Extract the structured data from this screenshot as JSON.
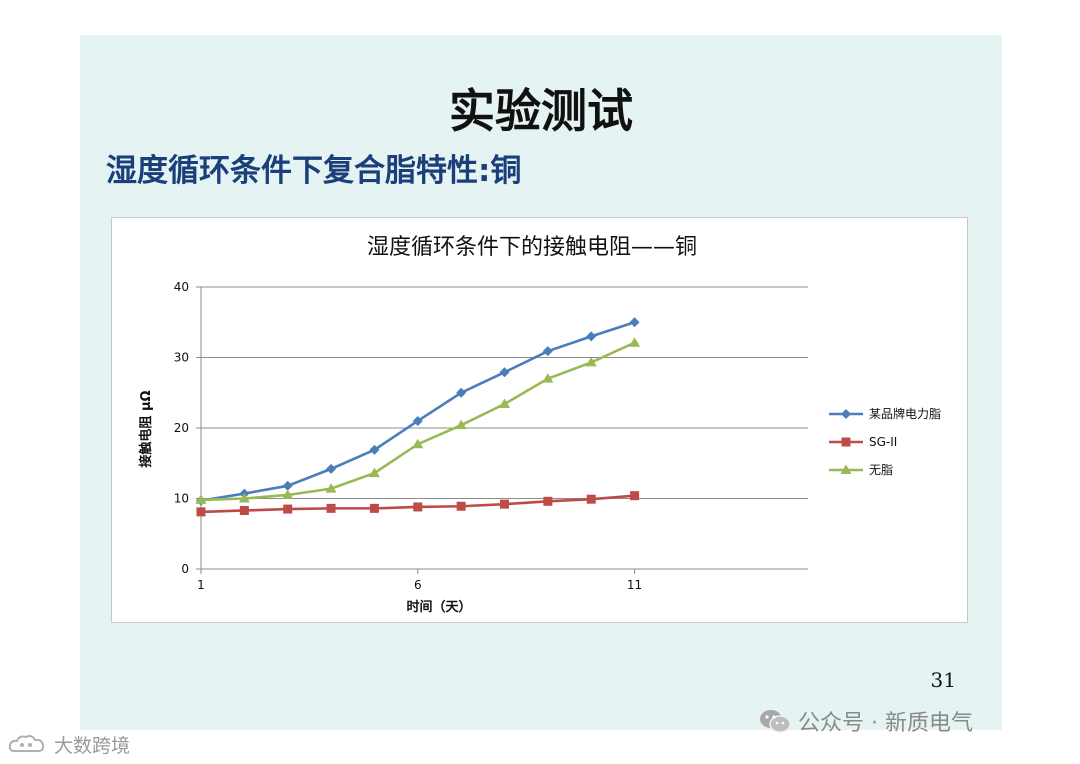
{
  "slide": {
    "title": "实验测试",
    "subtitle": "湿度循环条件下复合脂特性:铜",
    "page_number": "31"
  },
  "watermarks": {
    "right": "公众号 · 新质电气",
    "left": "大数跨境",
    "right_icon": "wechat-icon",
    "left_icon": "cloud-logo-icon"
  },
  "chart_data": {
    "type": "line",
    "title": "湿度循环条件下的接触电阻——铜",
    "xlabel": "时间（天）",
    "ylabel": "接触电阻 μΩ",
    "x": [
      1,
      2,
      3,
      4,
      5,
      6,
      7,
      8,
      9,
      10,
      11
    ],
    "xlim": [
      1,
      15
    ],
    "xticks": [
      1,
      6,
      11
    ],
    "ylim": [
      0,
      40
    ],
    "yticks": [
      0,
      10,
      20,
      30,
      40
    ],
    "grid": true,
    "legend_position": "right",
    "series": [
      {
        "name": "某品牌电力脂",
        "color": "#4a7ebb",
        "marker": "diamond",
        "values": [
          9.7,
          10.7,
          11.8,
          14.2,
          16.9,
          21.0,
          25.0,
          27.9,
          30.9,
          33.0,
          35.0
        ]
      },
      {
        "name": "SG-II",
        "color": "#be4b48",
        "marker": "square",
        "values": [
          8.1,
          8.3,
          8.5,
          8.6,
          8.6,
          8.8,
          8.9,
          9.2,
          9.6,
          9.9,
          10.4
        ]
      },
      {
        "name": "无脂",
        "color": "#98b954",
        "marker": "triangle",
        "values": [
          9.8,
          10.0,
          10.5,
          11.4,
          13.6,
          17.7,
          20.4,
          23.4,
          27.0,
          29.3,
          32.1
        ]
      }
    ]
  }
}
